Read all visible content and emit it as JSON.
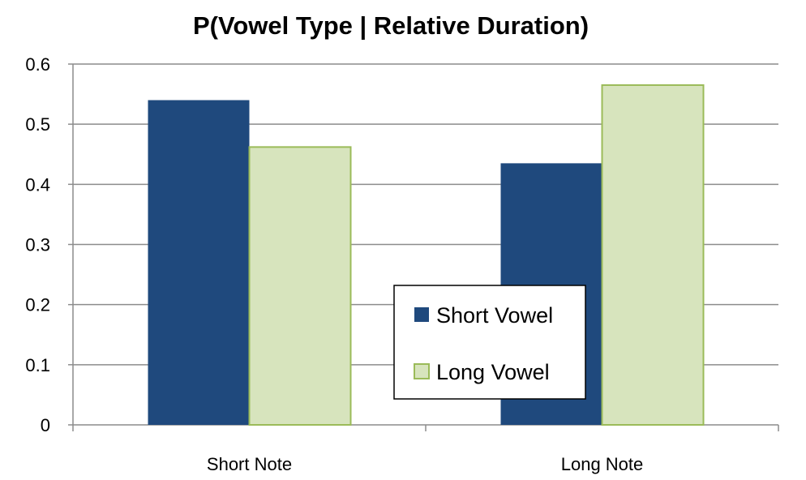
{
  "chart_data": {
    "type": "bar",
    "title": "P(Vowel Type | Relative Duration)",
    "xlabel": "",
    "ylabel": "",
    "categories": [
      "Short Note",
      "Long Note"
    ],
    "series": [
      {
        "name": "Short Vowel",
        "values": [
          0.54,
          0.435
        ],
        "color": "#1F497D"
      },
      {
        "name": "Long Vowel",
        "values": [
          0.462,
          0.565
        ],
        "color": "#D7E4BD",
        "stroke": "#9BBB59"
      }
    ],
    "ylim": [
      0,
      0.6
    ],
    "yticks": [
      "0",
      "0.1",
      "0.2",
      "0.3",
      "0.4",
      "0.5",
      "0.6"
    ],
    "grid": true,
    "legend_position": "center-right, inside plot"
  }
}
